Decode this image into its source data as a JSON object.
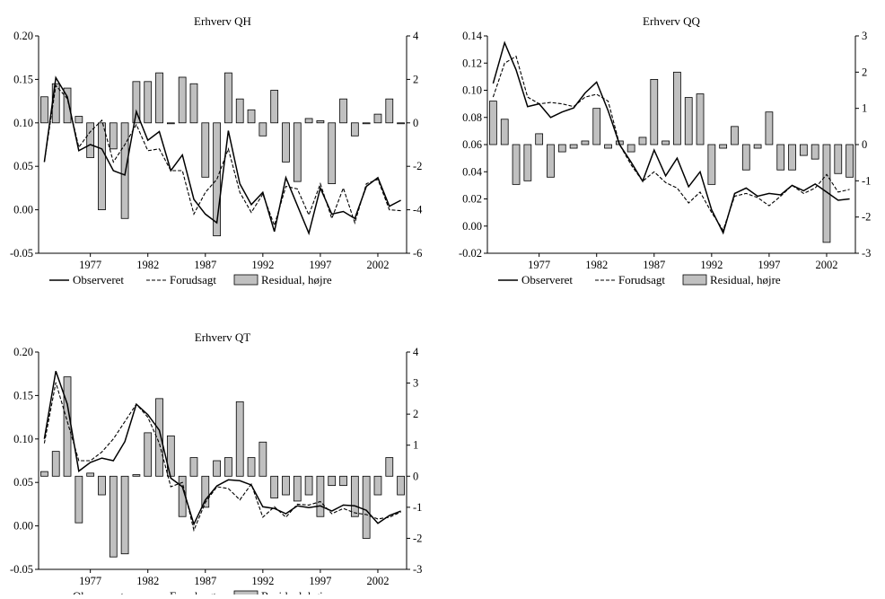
{
  "x_ticks": [
    "1977",
    "1982",
    "1987",
    "1992",
    "1997",
    "2002"
  ],
  "legend": {
    "observed": "Observeret",
    "forecast": "Forudsagt",
    "residual": "Residual, højre"
  },
  "chart_data": [
    {
      "type": "line",
      "title": "Erhverv QH",
      "years": [
        1973,
        1974,
        1975,
        1976,
        1977,
        1978,
        1979,
        1980,
        1981,
        1982,
        1983,
        1984,
        1985,
        1986,
        1987,
        1988,
        1989,
        1990,
        1991,
        1992,
        1993,
        1994,
        1995,
        1996,
        1997,
        1998,
        1999,
        2000,
        2001,
        2002,
        2003,
        2004
      ],
      "ylim": [
        -0.05,
        0.2
      ],
      "yticks": [
        "0.20",
        "0.15",
        "0.10",
        "0.05",
        "0.00",
        "-0.05"
      ],
      "y2lim": [
        -6,
        4
      ],
      "y2ticks": [
        "4",
        "2",
        "0",
        "-2",
        "-4",
        "-6"
      ],
      "series": [
        {
          "name": "Observeret",
          "values": [
            0.055,
            0.152,
            0.13,
            0.068,
            0.075,
            0.07,
            0.045,
            0.04,
            0.113,
            0.08,
            0.09,
            0.045,
            0.063,
            0.012,
            -0.005,
            -0.015,
            0.091,
            0.03,
            0.006,
            0.02,
            -0.025,
            0.037,
            0.005,
            -0.027,
            0.025,
            -0.005,
            -0.002,
            -0.01,
            0.027,
            0.037,
            0.004,
            0.011
          ]
        },
        {
          "name": "Forudsagt",
          "values": [
            0.055,
            0.143,
            0.128,
            0.072,
            0.09,
            0.103,
            0.055,
            0.075,
            0.098,
            0.068,
            0.07,
            0.045,
            0.045,
            -0.005,
            0.02,
            0.035,
            0.07,
            0.02,
            -0.003,
            0.018,
            -0.018,
            0.027,
            0.024,
            -0.006,
            0.03,
            -0.01,
            0.025,
            -0.015,
            0.03,
            0.035,
            0,
            -0.001
          ]
        },
        {
          "name": "Residual, højre",
          "values": [
            1.2,
            1.8,
            1.6,
            0.3,
            -1.6,
            -4.0,
            -1.2,
            -4.4,
            1.9,
            1.9,
            2.3,
            0,
            2.1,
            1.8,
            -2.5,
            -5.2,
            2.3,
            1.1,
            0.6,
            -0.6,
            1.5,
            -1.8,
            -2.7,
            0.2,
            0.1,
            -2.8,
            1.1,
            -0.6,
            0,
            0.4,
            1.1,
            0
          ]
        }
      ]
    },
    {
      "type": "line",
      "title": "Erhverv QQ",
      "years": [
        1973,
        1974,
        1975,
        1976,
        1977,
        1978,
        1979,
        1980,
        1981,
        1982,
        1983,
        1984,
        1985,
        1986,
        1987,
        1988,
        1989,
        1990,
        1991,
        1992,
        1993,
        1994,
        1995,
        1996,
        1997,
        1998,
        1999,
        2000,
        2001,
        2002,
        2003,
        2004
      ],
      "ylim": [
        -0.02,
        0.14
      ],
      "yticks": [
        "0.14",
        "0.12",
        "0.10",
        "0.08",
        "0.06",
        "0.04",
        "0.02",
        "0.00",
        "-0.02"
      ],
      "y2lim": [
        -3,
        3
      ],
      "y2ticks": [
        "3",
        "2",
        "1",
        "0",
        "-1",
        "-2",
        "-3"
      ],
      "series": [
        {
          "name": "Observeret",
          "values": [
            0.105,
            0.135,
            0.115,
            0.088,
            0.09,
            0.08,
            0.084,
            0.087,
            0.098,
            0.106,
            0.085,
            0.06,
            0.047,
            0.033,
            0.056,
            0.037,
            0.05,
            0.029,
            0.04,
            0.012,
            -0.005,
            0.024,
            0.028,
            0.022,
            0.024,
            0.023,
            0.03,
            0.026,
            0.031,
            0.025,
            0.019,
            0.02
          ]
        },
        {
          "name": "Forudsagt",
          "values": [
            0.095,
            0.12,
            0.125,
            0.095,
            0.09,
            0.091,
            0.09,
            0.088,
            0.095,
            0.097,
            0.092,
            0.06,
            0.045,
            0.033,
            0.04,
            0.032,
            0.028,
            0.017,
            0.025,
            0.01,
            -0.003,
            0.022,
            0.024,
            0.021,
            0.015,
            0.022,
            0.03,
            0.024,
            0.028,
            0.038,
            0.025,
            0.027
          ]
        },
        {
          "name": "Residual, højre",
          "values": [
            1.2,
            0.7,
            -1.1,
            -1.0,
            0.3,
            -0.9,
            -0.2,
            -0.1,
            0.1,
            1.0,
            -0.1,
            0.1,
            -0.2,
            0.2,
            1.8,
            0.1,
            2.0,
            1.3,
            1.4,
            -1.1,
            -0.1,
            0.5,
            -0.7,
            -0.1,
            0.9,
            -0.7,
            -0.7,
            -0.3,
            -0.4,
            -2.7,
            -0.8,
            -0.9
          ]
        }
      ]
    },
    {
      "type": "line",
      "title": "Erhverv QT",
      "years": [
        1973,
        1974,
        1975,
        1976,
        1977,
        1978,
        1979,
        1980,
        1981,
        1982,
        1983,
        1984,
        1985,
        1986,
        1987,
        1988,
        1989,
        1990,
        1991,
        1992,
        1993,
        1994,
        1995,
        1996,
        1997,
        1998,
        1999,
        2000,
        2001,
        2002,
        2003,
        2004
      ],
      "ylim": [
        -0.05,
        0.2
      ],
      "yticks": [
        "0.20",
        "0.15",
        "0.10",
        "0.05",
        "0.00",
        "-0.05"
      ],
      "y2lim": [
        -3,
        4
      ],
      "y2ticks": [
        "4",
        "3",
        "2",
        "1",
        "0",
        "-1",
        "-2",
        "-3"
      ],
      "series": [
        {
          "name": "Observeret",
          "values": [
            0.1,
            0.178,
            0.14,
            0.063,
            0.073,
            0.078,
            0.075,
            0.097,
            0.14,
            0.128,
            0.11,
            0.055,
            0.045,
            0.002,
            0.03,
            0.046,
            0.053,
            0.052,
            0.047,
            0.022,
            0.02,
            0.014,
            0.023,
            0.021,
            0.023,
            0.017,
            0.024,
            0.023,
            0.018,
            0.003,
            0.012,
            0.017
          ]
        },
        {
          "name": "Forudsagt",
          "values": [
            0.095,
            0.165,
            0.12,
            0.075,
            0.075,
            0.085,
            0.1,
            0.12,
            0.14,
            0.125,
            0.095,
            0.045,
            0.05,
            -0.005,
            0.027,
            0.045,
            0.043,
            0.03,
            0.048,
            0.01,
            0.022,
            0.01,
            0.025,
            0.024,
            0.028,
            0.014,
            0.02,
            0.015,
            0.013,
            0.008,
            0.01,
            0.016
          ]
        },
        {
          "name": "Residual, højre",
          "values": [
            0.15,
            0.8,
            3.2,
            -1.5,
            0.1,
            -0.6,
            -2.6,
            -2.5,
            0.05,
            1.4,
            2.5,
            1.3,
            -1.3,
            0.6,
            -1.0,
            0.5,
            0.6,
            2.4,
            0.6,
            1.1,
            -0.7,
            -0.6,
            -0.8,
            -0.6,
            -1.3,
            -0.3,
            -0.3,
            -1.3,
            -2.0,
            -0.6,
            0.6,
            -0.6
          ]
        }
      ]
    }
  ]
}
